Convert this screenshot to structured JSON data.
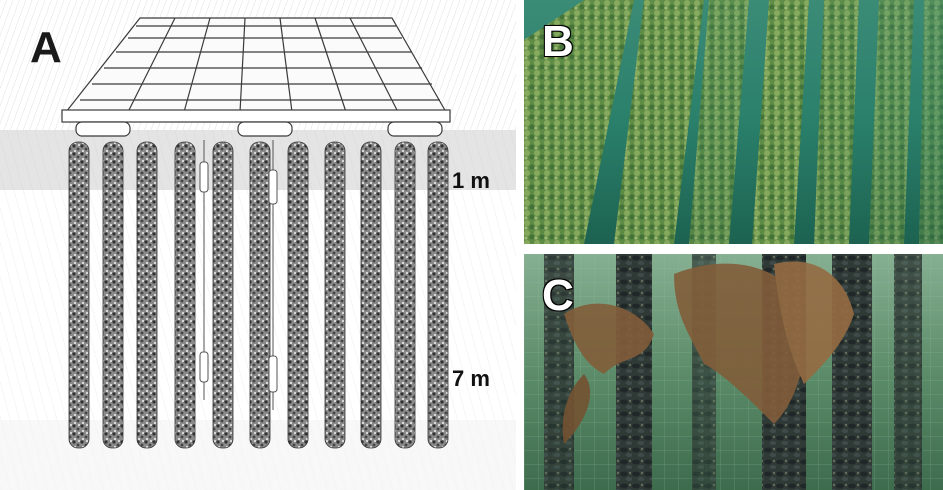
{
  "panels": {
    "a": {
      "label": "A",
      "depth_top": "1 m",
      "depth_bottom": "7 m"
    },
    "b": {
      "label": "B"
    },
    "c": {
      "label": "C"
    }
  }
}
